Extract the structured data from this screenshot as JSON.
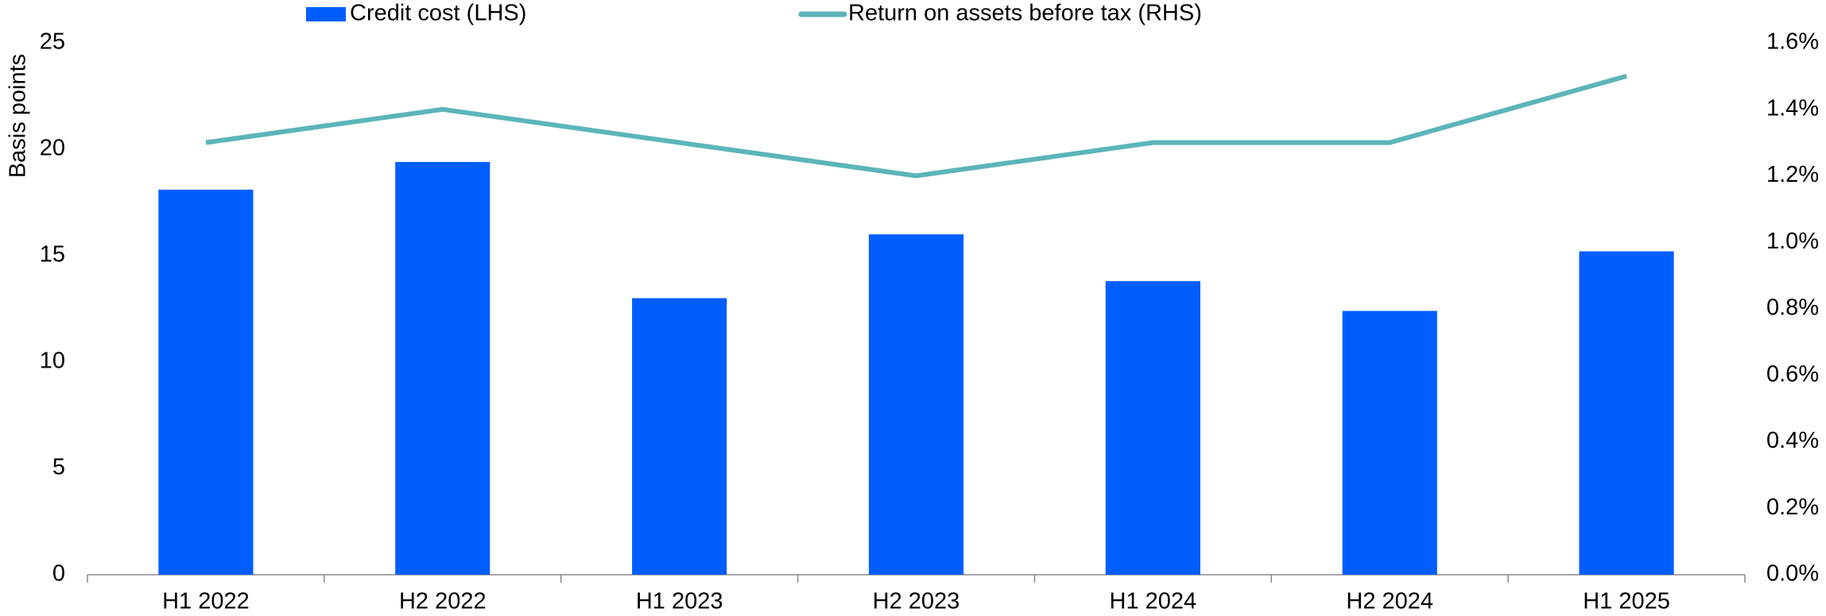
{
  "chart_data": {
    "type": "bar_line",
    "y_label": "Basis points",
    "categories": [
      "H1 2022",
      "H2 2022",
      "H1 2023",
      "H2 2023",
      "H1 2024",
      "H2 2024",
      "H1 2025"
    ],
    "series": [
      {
        "name": "Credit cost (LHS)",
        "type": "bar",
        "color": "#005eff",
        "values": [
          18.1,
          19.4,
          13.0,
          16.0,
          13.8,
          12.4,
          15.2
        ]
      },
      {
        "name": "Return on assets before tax (RHS)",
        "type": "line",
        "axis": "y2",
        "color": "#5bb5ba",
        "values": [
          1.3,
          1.4,
          1.3,
          1.2,
          1.3,
          1.3,
          1.5
        ]
      }
    ],
    "ylim": [
      0,
      25
    ],
    "yticks": [
      0,
      5,
      10,
      15,
      20,
      25
    ],
    "y2lim": [
      0,
      1.6
    ],
    "y2ticks": [
      {
        "value": 0,
        "label": "0.0%"
      },
      {
        "value": 0.2,
        "label": "0.2%"
      },
      {
        "value": 0.4,
        "label": "0.4%"
      },
      {
        "value": 0.6,
        "label": "0.6%"
      },
      {
        "value": 0.8,
        "label": "0.8%"
      },
      {
        "value": 1.0,
        "label": "1.0%"
      },
      {
        "value": 1.2,
        "label": "1.2%"
      },
      {
        "value": 1.4,
        "label": "1.4%"
      },
      {
        "value": 1.6,
        "label": "1.6%"
      }
    ],
    "grid": false,
    "legend": "top"
  }
}
